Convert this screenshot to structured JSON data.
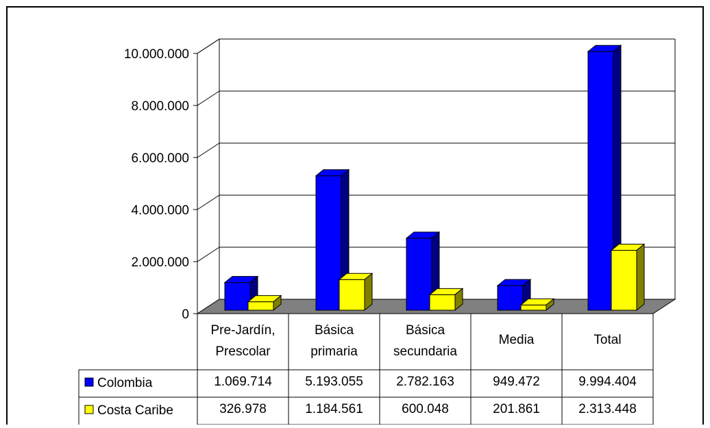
{
  "chart_data": {
    "type": "bar",
    "three_d": true,
    "categories": [
      [
        "Pre-Jardín,",
        "Prescolar"
      ],
      [
        "Básica",
        "primaria"
      ],
      [
        "Básica",
        "secundaria"
      ],
      [
        "Media"
      ],
      [
        "Total"
      ]
    ],
    "series": [
      {
        "name": "Colombia",
        "color": "#0000ff",
        "values": [
          1069714,
          5193055,
          2782163,
          949472,
          9994404
        ],
        "labels": [
          "1.069.714",
          "5.193.055",
          "2.782.163",
          "949.472",
          "9.994.404"
        ]
      },
      {
        "name": "Costa Caribe",
        "color": "#ffff00",
        "values": [
          326978,
          1184561,
          600048,
          201861,
          2313448
        ],
        "labels": [
          "326.978",
          "1.184.561",
          "600.048",
          "201.861",
          "2.313.448"
        ]
      }
    ],
    "y_ticks": [
      "0",
      "2.000.000",
      "4.000.000",
      "6.000.000",
      "8.000.000",
      "10.000.000"
    ],
    "ylim": [
      0,
      10000000
    ],
    "grid": true,
    "legend": "data-table",
    "floor_color": "#808080"
  }
}
